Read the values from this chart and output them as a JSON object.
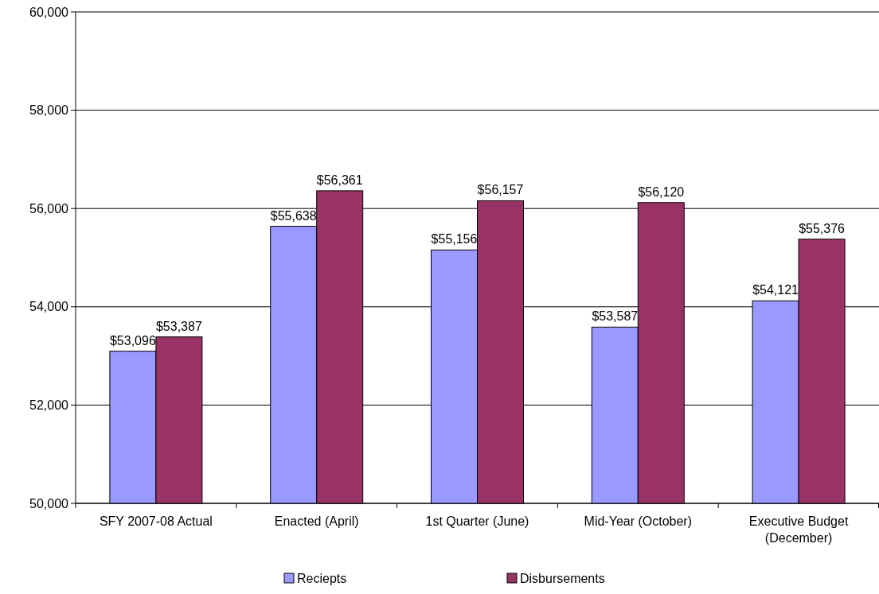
{
  "chart_data": {
    "type": "bar",
    "categories": [
      "SFY 2007-08 Actual",
      "Enacted (April)",
      "1st Quarter (June)",
      "Mid-Year (October)",
      "Executive Budget (December)"
    ],
    "series": [
      {
        "name": "Reciepts",
        "color": "#9999ff",
        "values": [
          53096,
          55638,
          55156,
          53587,
          54121
        ],
        "value_labels": [
          "$53,096",
          "$55,638",
          "$55,156",
          "$53,587",
          "$54,121"
        ]
      },
      {
        "name": "Disbursements",
        "color": "#993366",
        "values": [
          53387,
          56361,
          56157,
          56120,
          55376
        ],
        "value_labels": [
          "$53,387",
          "$56,361",
          "$56,157",
          "$56,120",
          "$55,376"
        ]
      }
    ],
    "ylim": [
      50000,
      60000
    ],
    "yticks": [
      {
        "value": 50000,
        "label": "50,000"
      },
      {
        "value": 52000,
        "label": "52,000"
      },
      {
        "value": 54000,
        "label": "54,000"
      },
      {
        "value": 56000,
        "label": "56,000"
      },
      {
        "value": 58000,
        "label": "58,000"
      },
      {
        "value": 60000,
        "label": "60,000"
      }
    ],
    "grid": "y",
    "legend": "bottom"
  }
}
